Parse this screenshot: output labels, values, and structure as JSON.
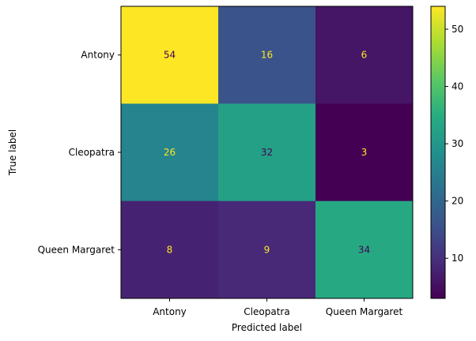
{
  "chart_data": {
    "type": "heatmap",
    "title": "",
    "xlabel": "Predicted label",
    "ylabel": "True label",
    "x_categories": [
      "Antony",
      "Cleopatra",
      "Queen Margaret"
    ],
    "y_categories": [
      "Antony",
      "Cleopatra",
      "Queen Margaret"
    ],
    "values": [
      [
        54,
        16,
        6
      ],
      [
        26,
        32,
        3
      ],
      [
        8,
        9,
        34
      ]
    ],
    "colormap": "viridis",
    "vmin": 3,
    "vmax": 54,
    "colorbar_ticks": [
      10,
      20,
      30,
      40,
      50
    ],
    "text_color_on_light": "#440154",
    "text_color_on_dark": "#fde725"
  }
}
